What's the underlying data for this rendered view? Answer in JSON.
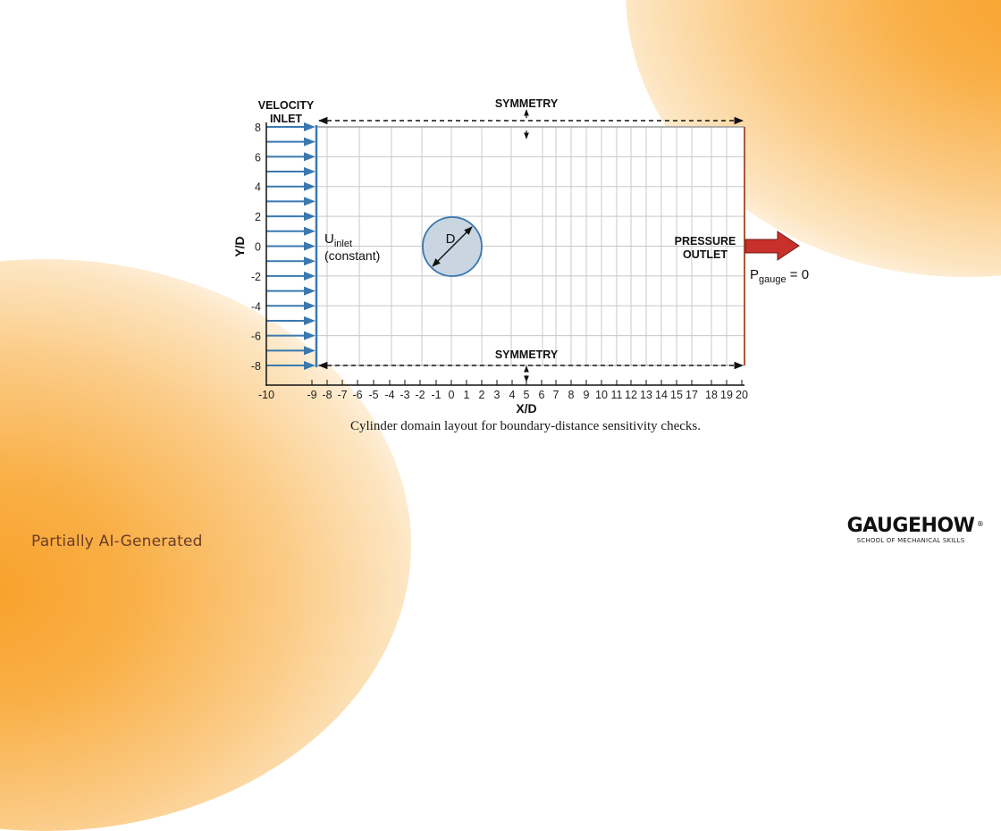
{
  "figure": {
    "labels": {
      "velocity_inlet_line1": "VELOCITY",
      "velocity_inlet_line2": "INLET",
      "symmetry_top": "SYMMETRY",
      "symmetry_bottom": "SYMMETRY",
      "u_inlet_main": "U",
      "u_inlet_sub": "inlet",
      "u_inlet_note": "(constant)",
      "cylinder_label": "D",
      "pressure_outlet_line1": "PRESSURE",
      "pressure_outlet_line2": "OUTLET",
      "p_gauge_main": "P",
      "p_gauge_sub": "gauge",
      "p_gauge_value": " = 0",
      "x_axis_label": "X/D",
      "y_axis_label": "Y/D"
    },
    "y_ticks": [
      "8",
      "6",
      "4",
      "2",
      "0",
      "-2",
      "-4",
      "-6",
      "-8"
    ],
    "x_ticks": [
      "-10",
      "-9",
      "-8",
      "-7",
      "-6",
      "-5",
      "-4",
      "-3",
      "-2",
      "-1",
      "0",
      "1",
      "2",
      "3",
      "4",
      "5",
      "6",
      "7",
      "8",
      "9",
      "10",
      "11",
      "12",
      "13",
      "14",
      "15",
      "17",
      "18",
      "19",
      "20"
    ],
    "caption": "Cylinder domain layout for boundary-distance sensitivity checks.",
    "colors": {
      "inlet_blue": "#3a78b0",
      "outlet_red": "#c8302c",
      "outlet_line": "#b0553a",
      "cylinder_fill": "#c9d5e1",
      "cylinder_stroke": "#3a78b0",
      "grid": "#c8c8c8"
    },
    "domain": {
      "x_range": [
        -9,
        20
      ],
      "y_range": [
        -8,
        8
      ],
      "cylinder_center": [
        0,
        0
      ],
      "cylinder_diameter": 1
    }
  },
  "footer": {
    "ai_label": "Partially AI-Generated",
    "brand_name": "GAUGEHOW",
    "brand_registered": "®",
    "brand_tagline": "SCHOOL OF MECHANICAL SKILLS"
  }
}
